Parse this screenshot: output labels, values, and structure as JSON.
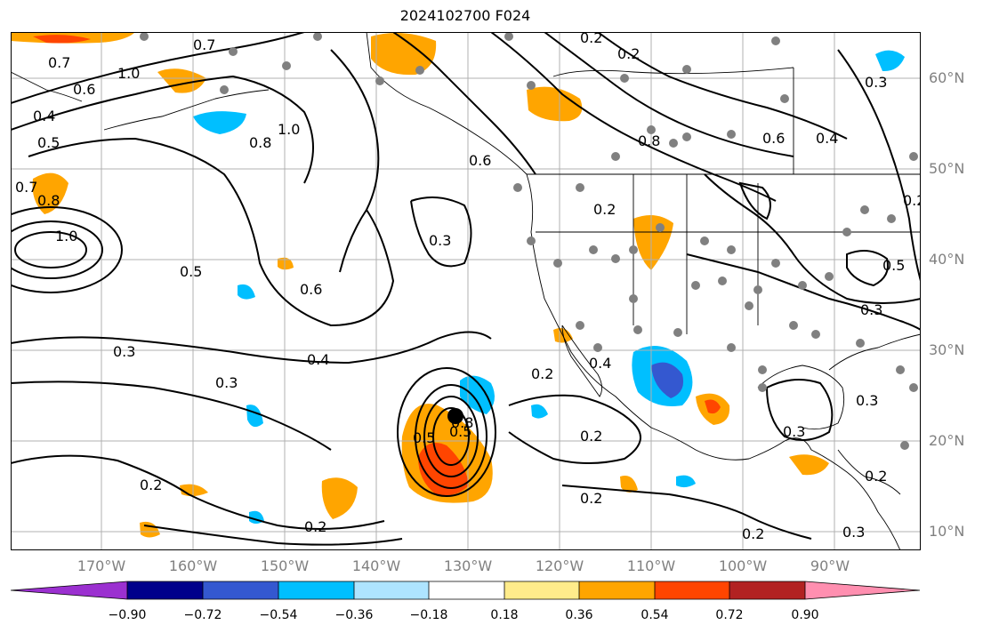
{
  "title": "2024102700 F024",
  "lat_labels": [
    "60°N",
    "50°N",
    "40°N",
    "30°N",
    "20°N",
    "10°N"
  ],
  "lon_labels": [
    "170°W",
    "160°W",
    "150°W",
    "140°W",
    "130°W",
    "120°W",
    "110°W",
    "100°W",
    "90°W"
  ],
  "contour_labels": [
    "0.7",
    "1.0",
    "0.7",
    "0.6",
    "0.4",
    "0.5",
    "0.7",
    "0.8",
    "1.0",
    "0.5",
    "0.6",
    "0.3",
    "0.3",
    "0.4",
    "0.2",
    "0.2",
    "0.2",
    "0.2",
    "0.3",
    "0.5",
    "0.6",
    "0.8",
    "0.2",
    "0.2",
    "0.3",
    "0.4",
    "0.2",
    "0.3",
    "0.6",
    "0.4",
    "0.3",
    "0.5",
    "0.3",
    "0.2",
    "0.2",
    "0.2",
    "0.3",
    "0.5",
    "0.8",
    "1.0",
    "0.8",
    "0.2"
  ],
  "colorbar": {
    "ticks": [
      "−0.90",
      "−0.72",
      "−0.54",
      "−0.36",
      "−0.18",
      "0.18",
      "0.36",
      "0.54",
      "0.72",
      "0.90"
    ],
    "colors": [
      "#9b30d0",
      "#00008b",
      "#3458d0",
      "#00bfff",
      "#aee4ff",
      "#ffffff",
      "#ffec8b",
      "#ffa500",
      "#ff4500",
      "#b22222",
      "#ff8fb0"
    ]
  }
}
